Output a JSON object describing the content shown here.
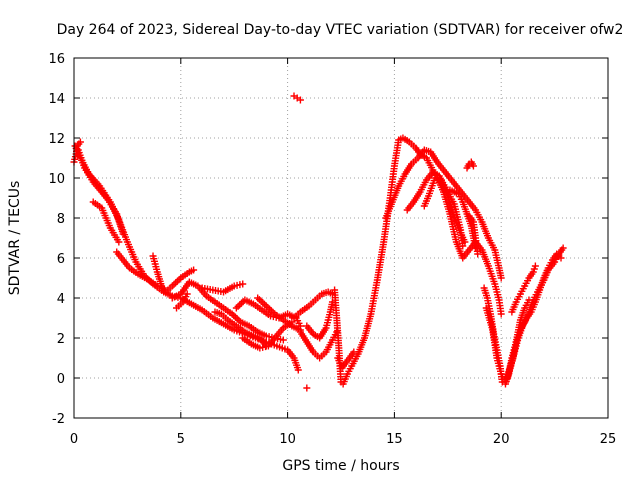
{
  "chart_data": {
    "type": "scatter",
    "title": "Day 264 of 2023, Sidereal Day-to-day VTEC variation (SDTVAR) for receiver ofw2",
    "xlabel": "GPS time / hours",
    "ylabel": "SDTVAR / TECUs",
    "xlim": [
      0,
      25
    ],
    "ylim": [
      -2,
      16
    ],
    "xticks": [
      "0",
      "5",
      "10",
      "15",
      "20",
      "25"
    ],
    "yticks": [
      "-2",
      "0",
      "2",
      "4",
      "6",
      "8",
      "10",
      "12",
      "14",
      "16"
    ],
    "grid": true,
    "marker": "plus",
    "series": [
      {
        "name": "SDTVAR",
        "color": "#ff0000",
        "tracks": [
          [
            [
              0.05,
              11.6
            ],
            [
              0.3,
              11.0
            ],
            [
              0.7,
              10.2
            ],
            [
              1.2,
              9.6
            ],
            [
              1.7,
              8.8
            ],
            [
              2.1,
              7.9
            ],
            [
              2.5,
              6.8
            ],
            [
              2.9,
              5.8
            ],
            [
              3.3,
              5.1
            ],
            [
              3.7,
              4.7
            ],
            [
              4.2,
              4.3
            ],
            [
              4.6,
              4.1
            ],
            [
              5.0,
              4.0
            ],
            [
              5.5,
              3.7
            ],
            [
              6.0,
              3.4
            ],
            [
              6.5,
              3.0
            ],
            [
              7.0,
              2.7
            ],
            [
              7.5,
              2.4
            ],
            [
              8.0,
              2.2
            ],
            [
              8.5,
              2.0
            ],
            [
              9.0,
              1.8
            ],
            [
              9.5,
              1.6
            ],
            [
              10.0,
              1.4
            ],
            [
              10.3,
              1.0
            ],
            [
              10.5,
              0.4
            ]
          ],
          [
            [
              0.2,
              11.4
            ],
            [
              0.5,
              10.5
            ],
            [
              0.9,
              9.8
            ],
            [
              1.3,
              9.3
            ],
            [
              1.6,
              8.9
            ],
            [
              2.0,
              8.2
            ],
            [
              2.3,
              7.2
            ]
          ],
          [
            [
              0.9,
              8.8
            ],
            [
              1.3,
              8.5
            ],
            [
              1.7,
              7.5
            ],
            [
              2.1,
              6.8
            ]
          ],
          [
            [
              2.0,
              6.3
            ],
            [
              2.3,
              5.9
            ],
            [
              2.6,
              5.5
            ],
            [
              3.0,
              5.2
            ],
            [
              3.5,
              4.9
            ],
            [
              3.9,
              4.6
            ]
          ],
          [
            [
              3.7,
              6.1
            ],
            [
              3.9,
              5.3
            ],
            [
              4.1,
              4.6
            ],
            [
              4.3,
              4.3
            ],
            [
              4.6,
              4.6
            ],
            [
              5.0,
              5.0
            ],
            [
              5.4,
              5.3
            ],
            [
              5.6,
              5.4
            ]
          ],
          [
            [
              4.6,
              4.0
            ],
            [
              5.0,
              4.2
            ],
            [
              5.4,
              4.8
            ],
            [
              5.8,
              4.6
            ],
            [
              6.2,
              4.1
            ],
            [
              6.6,
              3.8
            ],
            [
              7.0,
              3.5
            ],
            [
              7.4,
              3.2
            ],
            [
              7.8,
              2.8
            ],
            [
              8.2,
              2.6
            ],
            [
              8.6,
              2.3
            ],
            [
              9.0,
              2.1
            ],
            [
              9.4,
              2.0
            ],
            [
              9.8,
              1.9
            ]
          ],
          [
            [
              6.0,
              4.5
            ],
            [
              6.5,
              4.4
            ],
            [
              7.0,
              4.3
            ],
            [
              7.5,
              4.6
            ],
            [
              7.9,
              4.7
            ]
          ],
          [
            [
              6.6,
              3.3
            ],
            [
              6.9,
              3.2
            ],
            [
              7.2,
              2.9
            ],
            [
              7.6,
              2.6
            ],
            [
              8.0,
              2.3
            ],
            [
              8.4,
              2.1
            ],
            [
              8.8,
              1.9
            ],
            [
              9.0,
              1.6
            ]
          ],
          [
            [
              7.6,
              3.5
            ],
            [
              8.0,
              3.9
            ],
            [
              8.4,
              3.7
            ],
            [
              8.8,
              3.4
            ],
            [
              9.2,
              3.1
            ],
            [
              9.6,
              3.0
            ],
            [
              10.0,
              3.2
            ],
            [
              10.4,
              3.0
            ],
            [
              10.6,
              2.6
            ]
          ],
          [
            [
              7.9,
              2.0
            ],
            [
              8.3,
              1.7
            ],
            [
              8.7,
              1.5
            ],
            [
              9.1,
              1.6
            ],
            [
              9.4,
              2.0
            ],
            [
              9.8,
              2.5
            ],
            [
              10.2,
              2.8
            ]
          ],
          [
            [
              8.6,
              4.0
            ],
            [
              9.0,
              3.6
            ],
            [
              9.4,
              3.2
            ],
            [
              9.8,
              2.9
            ],
            [
              10.2,
              2.6
            ],
            [
              10.6,
              2.4
            ]
          ],
          [
            [
              10.3,
              3.0
            ],
            [
              10.6,
              3.3
            ],
            [
              11.0,
              3.6
            ],
            [
              11.3,
              3.9
            ],
            [
              11.6,
              4.2
            ],
            [
              11.9,
              4.3
            ],
            [
              12.1,
              4.2
            ]
          ],
          [
            [
              10.6,
              2.3
            ],
            [
              10.9,
              1.8
            ],
            [
              11.2,
              1.3
            ],
            [
              11.5,
              1.0
            ],
            [
              11.8,
              1.3
            ],
            [
              12.1,
              1.9
            ],
            [
              12.3,
              2.3
            ]
          ],
          [
            [
              10.9,
              2.6
            ],
            [
              11.2,
              2.2
            ],
            [
              11.5,
              2.0
            ],
            [
              11.8,
              2.5
            ],
            [
              12.0,
              3.3
            ],
            [
              12.1,
              3.8
            ]
          ],
          [
            [
              12.2,
              4.4
            ],
            [
              12.3,
              3.0
            ],
            [
              12.4,
              1.5
            ],
            [
              12.45,
              0.6
            ],
            [
              12.5,
              -0.2
            ],
            [
              12.6,
              -0.3
            ],
            [
              12.8,
              0.2
            ],
            [
              13.0,
              0.6
            ],
            [
              13.3,
              1.2
            ],
            [
              13.6,
              2.0
            ],
            [
              13.9,
              3.2
            ],
            [
              14.2,
              4.9
            ],
            [
              14.5,
              6.8
            ],
            [
              14.8,
              9.0
            ],
            [
              15.0,
              10.6
            ],
            [
              15.2,
              11.9
            ],
            [
              15.4,
              12.0
            ],
            [
              15.7,
              11.8
            ],
            [
              16.0,
              11.5
            ],
            [
              16.2,
              11.2
            ],
            [
              16.5,
              11.0
            ],
            [
              16.8,
              10.4
            ],
            [
              17.0,
              10.0
            ],
            [
              17.3,
              9.3
            ],
            [
              17.6,
              8.2
            ],
            [
              17.9,
              6.8
            ],
            [
              18.2,
              6.0
            ],
            [
              18.5,
              6.4
            ],
            [
              18.8,
              6.8
            ],
            [
              19.1,
              6.4
            ],
            [
              19.4,
              5.6
            ],
            [
              19.7,
              4.7
            ],
            [
              19.9,
              3.9
            ],
            [
              20.0,
              3.2
            ]
          ],
          [
            [
              12.35,
              1.0
            ],
            [
              12.55,
              0.5
            ],
            [
              12.75,
              0.8
            ],
            [
              12.9,
              1.0
            ],
            [
              13.1,
              1.3
            ]
          ],
          [
            [
              14.6,
              8.0
            ],
            [
              14.9,
              8.8
            ],
            [
              15.2,
              9.6
            ],
            [
              15.5,
              10.2
            ],
            [
              15.8,
              10.7
            ],
            [
              16.1,
              11.0
            ],
            [
              16.4,
              11.4
            ],
            [
              16.7,
              11.3
            ],
            [
              17.0,
              10.8
            ],
            [
              17.3,
              10.4
            ],
            [
              17.6,
              10.0
            ],
            [
              17.9,
              9.6
            ],
            [
              18.2,
              9.2
            ],
            [
              18.5,
              8.8
            ],
            [
              18.8,
              8.4
            ],
            [
              19.1,
              7.8
            ],
            [
              19.4,
              7.0
            ],
            [
              19.7,
              6.4
            ],
            [
              19.9,
              5.5
            ],
            [
              20.0,
              5.0
            ]
          ],
          [
            [
              15.6,
              8.4
            ],
            [
              15.9,
              8.8
            ],
            [
              16.2,
              9.3
            ],
            [
              16.5,
              9.9
            ],
            [
              16.8,
              10.3
            ],
            [
              17.1,
              10.1
            ],
            [
              17.4,
              9.4
            ],
            [
              17.7,
              8.4
            ],
            [
              18.0,
              7.5
            ],
            [
              18.3,
              6.8
            ]
          ],
          [
            [
              16.4,
              8.6
            ],
            [
              16.6,
              9.1
            ],
            [
              16.9,
              10.0
            ],
            [
              17.2,
              9.9
            ],
            [
              17.5,
              9.3
            ],
            [
              17.8,
              8.7
            ],
            [
              18.1,
              7.4
            ],
            [
              18.2,
              6.6
            ]
          ],
          [
            [
              17.6,
              9.4
            ],
            [
              17.8,
              9.3
            ],
            [
              18.0,
              9.2
            ],
            [
              18.2,
              8.8
            ],
            [
              18.4,
              8.2
            ],
            [
              18.6,
              7.6
            ],
            [
              18.8,
              6.5
            ]
          ],
          [
            [
              18.5,
              8.1
            ],
            [
              18.7,
              7.8
            ],
            [
              18.8,
              7.0
            ],
            [
              18.9,
              6.2
            ]
          ],
          [
            [
              18.4,
              10.5
            ],
            [
              18.5,
              10.7
            ],
            [
              18.6,
              10.8
            ],
            [
              18.7,
              10.6
            ]
          ],
          [
            [
              19.2,
              4.5
            ],
            [
              19.35,
              4.0
            ],
            [
              19.5,
              3.2
            ],
            [
              19.65,
              2.2
            ],
            [
              19.8,
              1.4
            ],
            [
              19.95,
              0.6
            ],
            [
              20.05,
              -0.2
            ],
            [
              20.2,
              -0.3
            ],
            [
              20.35,
              0.2
            ],
            [
              20.5,
              1.0
            ],
            [
              20.7,
              1.8
            ],
            [
              20.9,
              2.4
            ],
            [
              21.1,
              2.8
            ],
            [
              21.3,
              3.3
            ],
            [
              21.5,
              3.9
            ],
            [
              21.7,
              4.3
            ],
            [
              22.0,
              4.9
            ],
            [
              22.2,
              5.4
            ],
            [
              22.5,
              5.8
            ],
            [
              22.7,
              6.2
            ],
            [
              22.9,
              6.5
            ]
          ],
          [
            [
              19.3,
              3.5
            ],
            [
              19.6,
              2.4
            ],
            [
              19.8,
              1.0
            ],
            [
              20.0,
              0.2
            ],
            [
              20.2,
              -0.2
            ],
            [
              20.35,
              0.3
            ],
            [
              20.55,
              1.0
            ],
            [
              20.7,
              1.8
            ],
            [
              20.9,
              2.9
            ],
            [
              21.1,
              3.5
            ],
            [
              21.3,
              3.9
            ]
          ],
          [
            [
              20.3,
              0.0
            ],
            [
              20.45,
              0.6
            ],
            [
              20.6,
              1.2
            ],
            [
              20.8,
              2.0
            ],
            [
              21.0,
              2.6
            ],
            [
              21.2,
              3.0
            ],
            [
              21.4,
              3.3
            ],
            [
              21.6,
              3.8
            ],
            [
              21.8,
              4.4
            ],
            [
              22.0,
              5.0
            ],
            [
              22.2,
              5.5
            ],
            [
              22.4,
              5.9
            ],
            [
              22.6,
              6.2
            ],
            [
              22.8,
              6.0
            ]
          ],
          [
            [
              20.5,
              3.3
            ],
            [
              20.7,
              3.8
            ],
            [
              20.9,
              4.2
            ],
            [
              21.1,
              4.6
            ],
            [
              21.3,
              5.0
            ],
            [
              21.5,
              5.3
            ],
            [
              21.6,
              5.6
            ]
          ],
          [
            [
              10.3,
              14.1
            ],
            [
              10.45,
              14.0
            ],
            [
              10.6,
              13.9
            ]
          ],
          [
            [
              10.9,
              -0.5
            ]
          ],
          [
            [
              0.0,
              10.8
            ],
            [
              0.1,
              11.2
            ],
            [
              0.15,
              11.6
            ],
            [
              0.3,
              11.8
            ]
          ],
          [
            [
              4.8,
              3.5
            ],
            [
              5.1,
              3.8
            ],
            [
              5.3,
              4.2
            ]
          ]
        ]
      }
    ]
  }
}
